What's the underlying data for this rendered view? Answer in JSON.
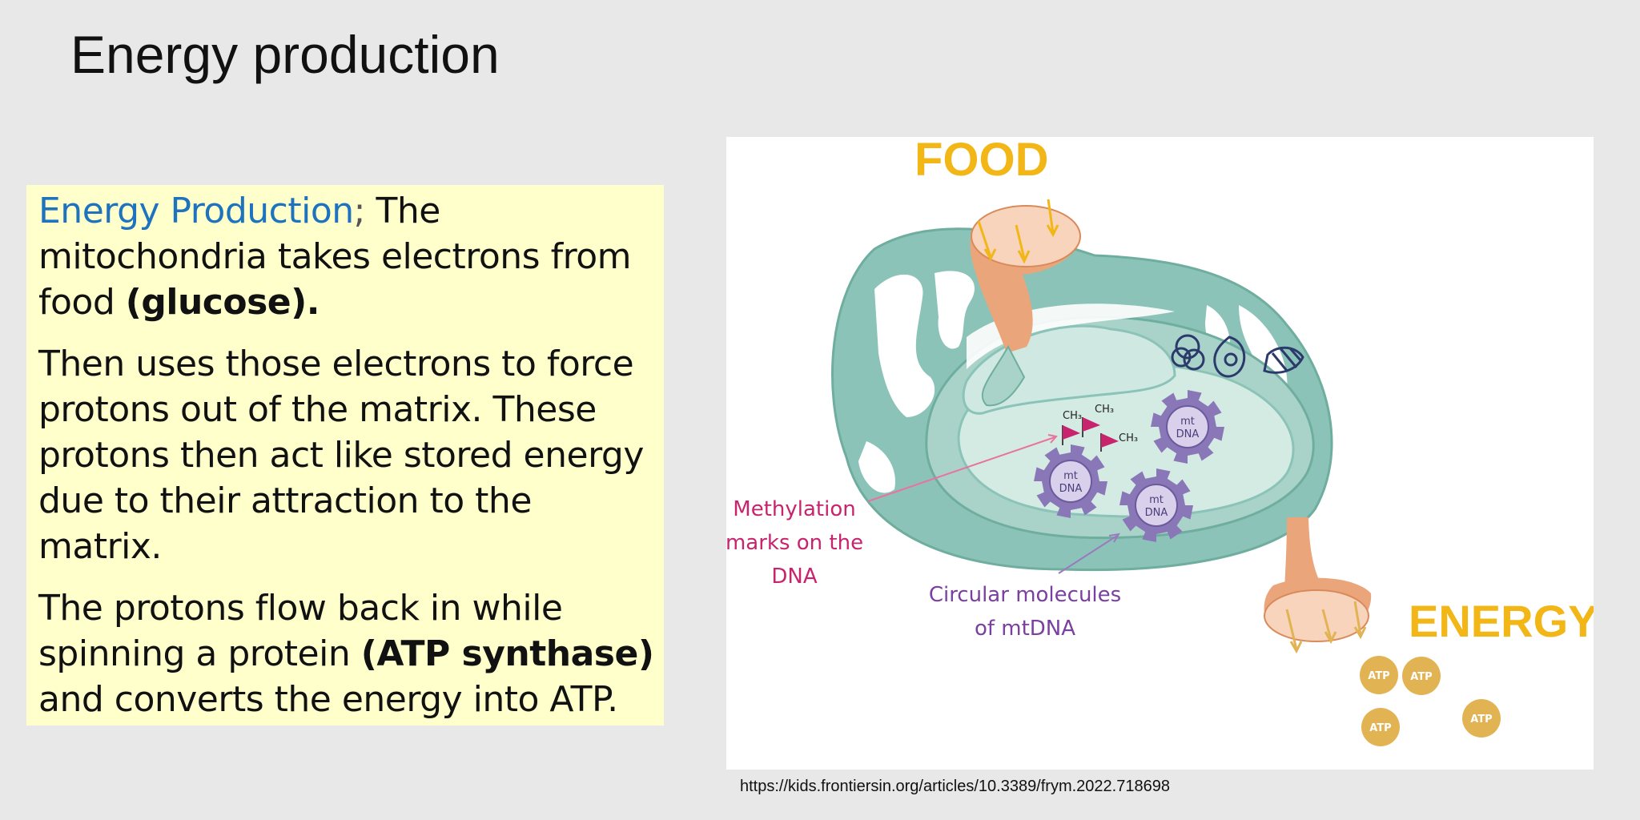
{
  "title": "Energy production",
  "content": {
    "p1": {
      "term": "Energy Production",
      "sep": ";",
      "text_a": " The mitochondria takes electrons from food ",
      "bold": "(glucose)."
    },
    "p2": {
      "text": "Then uses those electrons to force protons out of the matrix. These protons then act like stored energy due to their attraction to the matrix."
    },
    "p3": {
      "text_a": "The protons flow back in while spinning a protein ",
      "bold": "(ATP synthase)",
      "text_b": " and converts the energy into ATP."
    }
  },
  "figure": {
    "food_label": "FOOD",
    "energy_label": "ENERGY",
    "methylation_label": [
      "Methylation",
      "marks on the",
      "DNA"
    ],
    "circular_label": [
      "Circular molecules",
      "of mtDNA"
    ],
    "gear_label": [
      "mt",
      "DNA"
    ],
    "ch3_label": "CH₃",
    "atp_label": "ATP",
    "colors": {
      "food": "#f2b617",
      "membrane": "#8cc3b8",
      "matrix": "#d4ebe4",
      "funnel": "#eba57a",
      "gear": "#8a77b8",
      "methylation": "#c8246e",
      "circular": "#7a3fa0",
      "atp": "#e2b353"
    }
  },
  "citation": "https://kids.frontiersin.org/articles/10.3389/frym.2022.718698"
}
